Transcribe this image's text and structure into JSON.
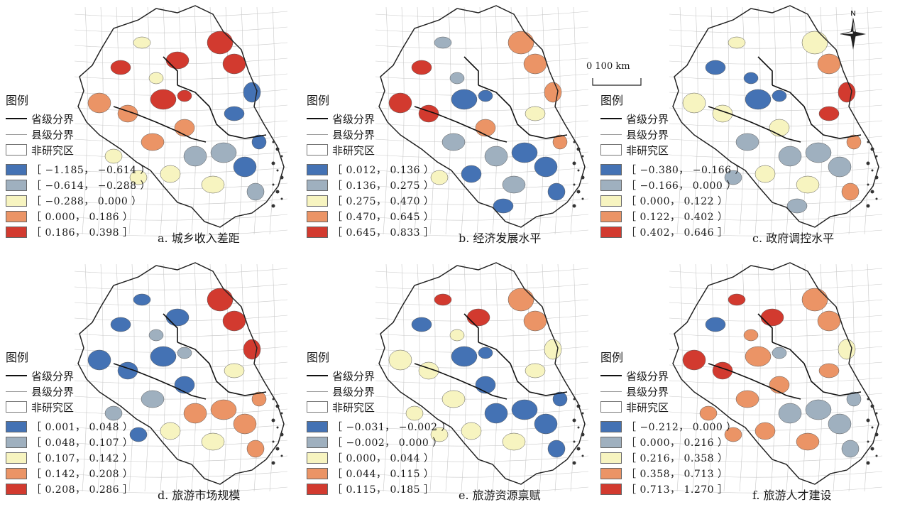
{
  "legend": {
    "title": "图例",
    "province_boundary": "省级分界",
    "county_boundary": "县级分界",
    "non_study_area": "非研究区"
  },
  "scale_bar": {
    "label": "0   100 km"
  },
  "north_arrow": {
    "label": "N"
  },
  "colors": [
    "#4472b4",
    "#9fb0bf",
    "#f7f4c0",
    "#eb9466",
    "#d23a2f"
  ],
  "panels": [
    {
      "caption": "a. 城乡收入差距",
      "classes": [
        "［ −1.185， −0.614 ）",
        "［ −0.614， −0.288 ）",
        "［ −0.288， 0.000 ）",
        "［ 0.000， 0.186 ）",
        "［ 0.186， 0.398 ］"
      ]
    },
    {
      "caption": "b. 经济发展水平",
      "classes": [
        "［ 0.012， 0.136 ）",
        "［ 0.136， 0.275 ）",
        "［ 0.275， 0.470 ）",
        "［ 0.470， 0.645 ）",
        "［ 0.645， 0.833 ］"
      ]
    },
    {
      "caption": "c. 政府调控水平",
      "classes": [
        "［ −0.380， −0.166 ）",
        "［ −0.166， 0.000 ）",
        "［ 0.000， 0.122 ）",
        "［ 0.122， 0.402 ）",
        "［ 0.402， 0.646 ］"
      ]
    },
    {
      "caption": "d. 旅游市场规模",
      "classes": [
        "［ 0.001， 0.048 ）",
        "［ 0.048， 0.107 ）",
        "［ 0.107， 0.142 ）",
        "［ 0.142， 0.208 ）",
        "［ 0.208， 0.286 ］"
      ]
    },
    {
      "caption": "e. 旅游资源禀赋",
      "classes": [
        "［ −0.031， −0.002 ）",
        "［ −0.002， 0.000 ）",
        "［ 0.000， 0.044 ）",
        "［ 0.044， 0.115 ）",
        "［ 0.115， 0.185 ］"
      ]
    },
    {
      "caption": "f. 旅游人才建设",
      "classes": [
        "［ −0.212， 0.000 ）",
        "［ 0.000， 0.216 ）",
        "［ 0.216， 0.358 ）",
        "［ 0.358， 0.713 ）",
        "［ 0.713， 1.270 ］"
      ]
    }
  ]
}
